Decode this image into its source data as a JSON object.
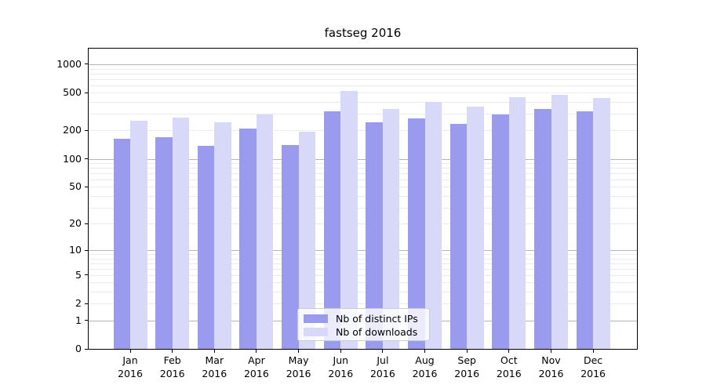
{
  "chart_data": {
    "type": "bar",
    "title": "fastseg 2016",
    "categories": [
      "Jan",
      "Feb",
      "Mar",
      "Apr",
      "May",
      "Jun",
      "Jul",
      "Aug",
      "Sep",
      "Oct",
      "Nov",
      "Dec"
    ],
    "x_year_label": "2016",
    "series": [
      {
        "name": "Nb of distinct IPs",
        "color": "#9a9aee",
        "values": [
          163,
          168,
          138,
          210,
          141,
          320,
          243,
          270,
          236,
          297,
          339,
          318
        ]
      },
      {
        "name": "Nb of downloads",
        "color": "#d8d8f8",
        "values": [
          251,
          275,
          246,
          296,
          193,
          523,
          340,
          398,
          355,
          445,
          480,
          441
        ]
      }
    ],
    "y_axis": {
      "scale": "log10(1+x)",
      "tick_values": [
        0,
        1,
        2,
        5,
        10,
        20,
        50,
        100,
        200,
        500,
        1000
      ],
      "range": [
        0,
        1435
      ]
    },
    "grid": {
      "orientation": "horizontal",
      "major_color": "#b5b5b5",
      "minor_color": "#ebebeb",
      "major_at": [
        1,
        10,
        100,
        1000
      ]
    },
    "legend": {
      "position": "lower-center-inside"
    }
  }
}
